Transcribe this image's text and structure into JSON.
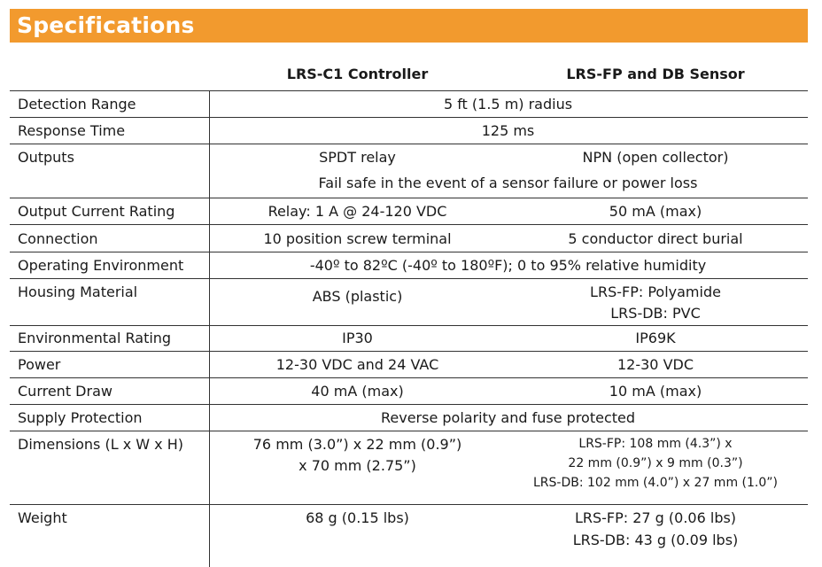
{
  "title": "Specifications",
  "columns": {
    "col1": "LRS-C1 Controller",
    "col2": "LRS-FP and DB Sensor"
  },
  "rows": {
    "detection_range": {
      "label": "Detection Range",
      "value": "5 ft (1.5 m) radius"
    },
    "response_time": {
      "label": "Response Time",
      "value": "125 ms"
    },
    "outputs": {
      "label": "Outputs",
      "c1": "SPDT relay",
      "c2": "NPN (open collector)",
      "note": "Fail safe in the event of a sensor failure or power loss"
    },
    "output_current": {
      "label": "Output Current Rating",
      "c1": "Relay: 1 A @ 24-120 VDC",
      "c2": "50 mA (max)"
    },
    "connection": {
      "label": "Connection",
      "c1": "10 position screw terminal",
      "c2": "5 conductor direct burial"
    },
    "operating_env": {
      "label": "Operating Environment",
      "value": "-40º to 82ºC (-40º to 180ºF); 0 to 95% relative humidity"
    },
    "housing": {
      "label": "Housing Material",
      "c1": "ABS (plastic)",
      "c2_line1": "LRS-FP: Polyamide",
      "c2_line2": "LRS-DB: PVC"
    },
    "env_rating": {
      "label": "Environmental Rating",
      "c1": "IP30",
      "c2": "IP69K"
    },
    "power": {
      "label": "Power",
      "c1": "12-30 VDC and 24 VAC",
      "c2": "12-30 VDC"
    },
    "current_draw": {
      "label": "Current Draw",
      "c1": "40 mA (max)",
      "c2": "10 mA (max)"
    },
    "supply_protection": {
      "label": "Supply Protection",
      "value": "Reverse polarity and fuse protected"
    },
    "dimensions": {
      "label": "Dimensions (L x W x H)",
      "c1_line1": "76 mm (3.0”) x 22 mm (0.9”)",
      "c1_line2": "x 70 mm (2.75”)",
      "c2_line1": "LRS-FP: 108 mm (4.3”) x",
      "c2_line2": "22 mm (0.9”) x 9 mm (0.3”)",
      "c2_line3": "LRS-DB: 102 mm (4.0”) x 27 mm (1.0”)"
    },
    "weight": {
      "label": "Weight",
      "c1": "68 g (0.15 lbs)",
      "c2_line1": "LRS-FP: 27 g (0.06 lbs)",
      "c2_line2": "LRS-DB: 43 g (0.09 lbs)"
    }
  }
}
